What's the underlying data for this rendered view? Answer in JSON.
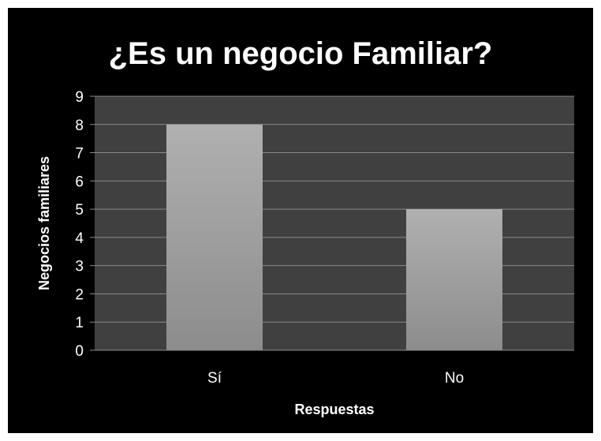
{
  "chart_data": {
    "type": "bar",
    "title": "¿Es un negocio Familiar?",
    "xlabel": "Respuestas",
    "ylabel": "Negocios familiares",
    "categories": [
      "Sí",
      "No"
    ],
    "values": [
      8,
      5
    ],
    "ylim": [
      0,
      9
    ],
    "yticks": [
      "0",
      "1",
      "2",
      "3",
      "4",
      "5",
      "6",
      "7",
      "8",
      "9"
    ],
    "grid": true,
    "legend": "none",
    "colors": {
      "background": "#000000",
      "plot_area": "#404040",
      "bar_top": "#b0b0b0",
      "bar_bottom": "#8c8c8c",
      "gridline": "#8a8a8a",
      "text": "#ffffff"
    }
  }
}
